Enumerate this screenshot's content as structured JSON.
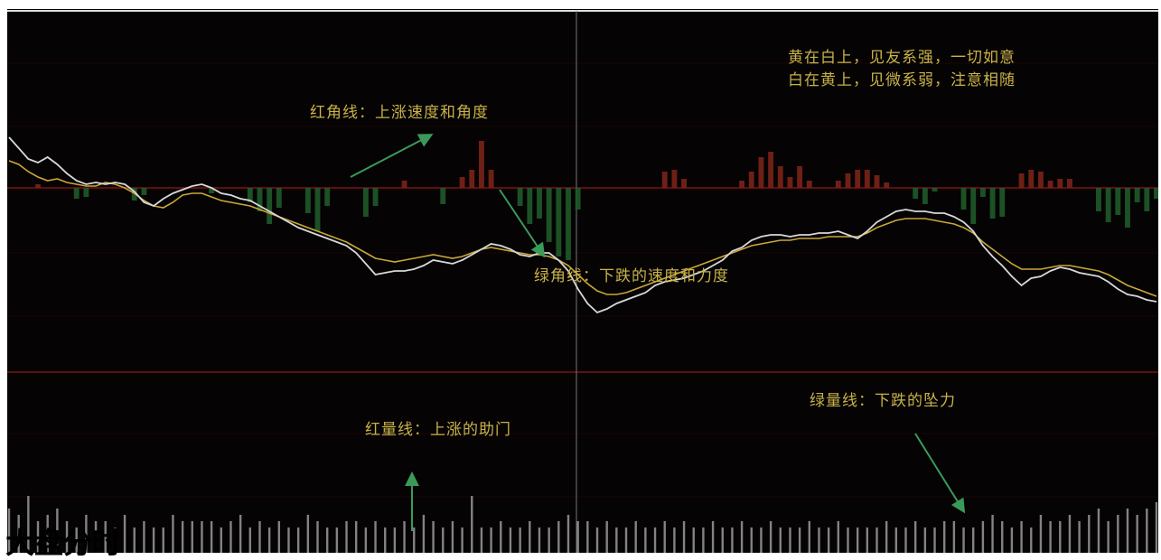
{
  "caption": "大盘分时",
  "annotations": {
    "yellow_white_line1": "黄在白上，见友系强，一切如意",
    "yellow_white_line2": "白在黄上，见微系弱，注意相随",
    "red_angle": "红角线：上涨速度和角度",
    "green_angle": "绿角线：下跌的速度和力度",
    "red_volume": "红量线：上涨的助门",
    "green_volume": "绿量线：下跌的坠力"
  },
  "colors": {
    "background": "#050303",
    "white_line": "#d8d8d8",
    "yellow_line": "#c9a83a",
    "red_bar": "#7a2418",
    "green_bar": "#1f5a2a",
    "volume_bar": "#9a9a9a",
    "annotation_text": "#c9b24a",
    "arrow": "#3a9a5a",
    "grid_line": "#5a1010"
  },
  "chart_data": {
    "type": "line",
    "title": "大盘分时",
    "xlabel": "",
    "ylabel": "",
    "grid": true,
    "baseline_value": 0,
    "points": 120,
    "series": [
      {
        "values": [
          2.8,
          2.2,
          1.6,
          1.4,
          1.7,
          1.3,
          0.8,
          0.4,
          0.2,
          0.3,
          0.2,
          0.3,
          0.2,
          -0.2,
          -0.8,
          -1.0,
          -0.6,
          -0.3,
          -0.1,
          0.1,
          0.2,
          0.0,
          -0.3,
          -0.4,
          -0.6,
          -0.7,
          -1.0,
          -1.3,
          -1.6,
          -1.9,
          -2.2,
          -2.4,
          -2.6,
          -2.8,
          -3.0,
          -3.2,
          -3.6,
          -4.2,
          -4.8,
          -4.7,
          -4.6,
          -4.6,
          -4.5,
          -4.3,
          -4.0,
          -4.1,
          -4.2,
          -4.0,
          -3.7,
          -3.4,
          -3.1,
          -3.2,
          -3.4,
          -3.7,
          -3.8,
          -3.6,
          -3.6,
          -4.0,
          -4.6,
          -5.6,
          -6.4,
          -6.9,
          -6.7,
          -6.4,
          -6.2,
          -6.0,
          -5.8,
          -5.4,
          -5.2,
          -5.1,
          -5.0,
          -4.8,
          -4.6,
          -4.3,
          -4.0,
          -3.5,
          -3.3,
          -2.9,
          -2.7,
          -2.6,
          -2.6,
          -2.7,
          -2.6,
          -2.6,
          -2.5,
          -2.5,
          -2.4,
          -2.6,
          -2.8,
          -2.4,
          -1.9,
          -1.6,
          -1.3,
          -1.2,
          -1.3,
          -1.3,
          -1.4,
          -1.4,
          -1.6,
          -1.9,
          -2.4,
          -3.2,
          -3.8,
          -4.3,
          -4.9,
          -5.4,
          -5.0,
          -4.9,
          -4.6,
          -4.4,
          -4.5,
          -4.7,
          -4.8,
          -4.9,
          -5.2,
          -5.6,
          -5.9,
          -6.0,
          -6.2,
          -6.3
        ]
      },
      {
        "values": [
          1.5,
          1.3,
          0.9,
          0.6,
          0.4,
          0.5,
          0.3,
          0.2,
          0.1,
          0.1,
          0.3,
          0.2,
          0.0,
          -0.3,
          -0.7,
          -1.0,
          -1.1,
          -0.8,
          -0.4,
          -0.3,
          -0.3,
          -0.5,
          -0.7,
          -0.8,
          -0.9,
          -1.0,
          -1.2,
          -1.4,
          -1.6,
          -1.8,
          -2.0,
          -2.2,
          -2.4,
          -2.6,
          -2.8,
          -3.0,
          -3.3,
          -3.6,
          -3.9,
          -4.0,
          -4.1,
          -4.0,
          -3.9,
          -3.8,
          -3.7,
          -3.8,
          -3.9,
          -3.8,
          -3.6,
          -3.4,
          -3.3,
          -3.4,
          -3.5,
          -3.6,
          -3.7,
          -3.7,
          -3.8,
          -4.0,
          -4.3,
          -4.8,
          -5.3,
          -5.7,
          -5.9,
          -5.9,
          -5.8,
          -5.6,
          -5.4,
          -5.2,
          -5.0,
          -4.8,
          -4.6,
          -4.4,
          -4.2,
          -4.0,
          -3.8,
          -3.6,
          -3.4,
          -3.2,
          -3.1,
          -3.0,
          -2.9,
          -2.9,
          -2.8,
          -2.8,
          -2.8,
          -2.7,
          -2.7,
          -2.7,
          -2.7,
          -2.5,
          -2.2,
          -2.0,
          -1.8,
          -1.7,
          -1.7,
          -1.7,
          -1.8,
          -1.9,
          -2.0,
          -2.2,
          -2.5,
          -3.0,
          -3.4,
          -3.8,
          -4.2,
          -4.5,
          -4.5,
          -4.5,
          -4.4,
          -4.3,
          -4.3,
          -4.4,
          -4.5,
          -4.6,
          -4.8,
          -5.1,
          -5.4,
          -5.6,
          -5.8,
          -6.0
        ]
      },
      {
        "values": [
          0,
          0,
          0,
          0.2,
          0,
          0,
          0,
          -0.6,
          -0.5,
          0,
          0,
          0,
          0,
          -0.7,
          -0.4,
          0,
          0,
          0,
          0,
          0,
          0,
          -0.3,
          0,
          0,
          0,
          -0.8,
          -1.3,
          -2.0,
          -1.1,
          0,
          0,
          -1.4,
          -2.4,
          -1.0,
          0,
          0,
          0,
          -1.6,
          -1.0,
          0,
          0,
          0.4,
          0,
          0,
          0,
          -0.9,
          0,
          0.6,
          1.0,
          2.6,
          1.0,
          0,
          0,
          -1.0,
          -2.0,
          -1.7,
          -3.0,
          -3.8,
          -4.0,
          -1.2,
          0,
          0,
          0,
          0,
          0,
          0,
          0,
          0,
          0.9,
          1.0,
          0.5,
          0,
          0,
          0,
          0,
          0,
          0.4,
          0.9,
          1.7,
          2.0,
          1.2,
          0.6,
          1.2,
          0.4,
          0,
          0,
          0.4,
          0.8,
          1.0,
          1.0,
          0.7,
          0.3,
          0,
          0,
          -0.6,
          -0.9,
          -0.2,
          0,
          0,
          -1.2,
          -2.0,
          -0.5,
          -1.7,
          -1.6,
          0,
          0.8,
          1.0,
          0.9,
          0.4,
          0.5,
          0.5,
          0,
          0,
          -1.3,
          -1.9,
          -1.5,
          -2.2,
          -0.8,
          -1.3,
          -0.6
        ]
      },
      {
        "values": [
          7,
          6,
          9,
          5,
          6,
          7,
          5,
          4,
          6,
          5,
          5,
          4,
          6,
          4,
          5,
          4,
          4,
          6,
          5,
          5,
          5,
          5,
          4,
          5,
          6,
          4,
          5,
          4,
          5,
          4,
          4,
          6,
          5,
          4,
          4,
          5,
          5,
          4,
          5,
          4,
          4,
          5,
          4,
          6,
          5,
          4,
          5,
          4,
          9,
          4,
          4,
          5,
          4,
          4,
          5,
          4,
          4,
          5,
          6,
          5,
          5,
          4,
          5,
          4,
          4,
          5,
          4,
          4,
          5,
          4,
          5,
          4,
          4,
          5,
          4,
          4,
          5,
          4,
          4,
          5,
          4,
          4,
          4,
          5,
          4,
          4,
          5,
          4,
          4,
          4,
          4,
          5,
          4,
          4,
          5,
          4,
          4,
          5,
          5,
          4,
          4,
          5,
          6,
          5,
          4,
          5,
          4,
          6,
          5,
          5,
          6,
          5,
          6,
          7,
          5,
          6,
          7,
          6,
          7,
          8
        ]
      }
    ]
  }
}
